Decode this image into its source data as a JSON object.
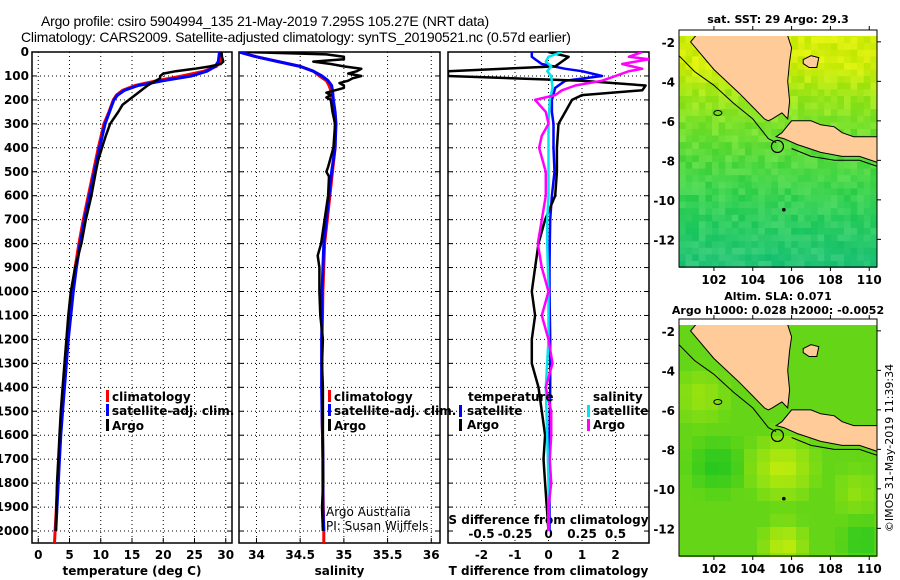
{
  "header": {
    "title_line1": "Argo profile: csiro 5904994_135 21-May-2019 7.295S 105.27E (NRT data)",
    "title_line2": "Climatology: CARS2009. Satellite-adjusted climatology: synTS_20190521.nc (0.57d earlier)"
  },
  "colors": {
    "climatology": "#ff0000",
    "satellite_adj": "#0000ff",
    "argo": "#000000",
    "sal_satellite": "#00e5ee",
    "sal_argo": "#ff00ff",
    "land": "#ffcc99"
  },
  "chart_data": [
    {
      "type": "line",
      "id": "temperature",
      "xlabel": "temperature (deg C)",
      "ylabel": "",
      "xlim": [
        -1,
        31
      ],
      "ylim": [
        2050,
        0
      ],
      "xticks": [
        0,
        5,
        10,
        15,
        20,
        25,
        30
      ],
      "yticks": [
        0,
        100,
        200,
        300,
        400,
        500,
        600,
        700,
        800,
        900,
        1000,
        1100,
        1200,
        1300,
        1400,
        1500,
        1600,
        1700,
        1800,
        1900,
        2000
      ],
      "grid": true,
      "legend_position": "center-right",
      "series": [
        {
          "name": "climatology",
          "color_key": "climatology",
          "depth": [
            0,
            40,
            60,
            80,
            100,
            120,
            140,
            160,
            180,
            200,
            250,
            300,
            400,
            500,
            600,
            700,
            800,
            900,
            1000,
            1100,
            1200,
            1300,
            1400,
            1500,
            1600,
            1700,
            1800,
            1900,
            2000,
            2050
          ],
          "values": [
            29.3,
            29.2,
            28.5,
            26.5,
            23,
            19,
            15.5,
            13.5,
            12.5,
            12,
            11.3,
            10.5,
            9.6,
            8.8,
            8,
            7.2,
            6.5,
            5.9,
            5.4,
            5.0,
            4.6,
            4.3,
            4.0,
            3.7,
            3.5,
            3.3,
            3.1,
            2.9,
            2.7,
            2.6
          ]
        },
        {
          "name": "satellite-adj. clim.",
          "color_key": "satellite_adj",
          "depth": [
            0,
            40,
            60,
            80,
            100,
            120,
            140,
            160,
            180,
            200,
            250,
            300,
            400,
            500,
            600,
            700,
            800,
            900,
            1000,
            1100,
            1200,
            1300,
            1400,
            1500,
            1600,
            1700,
            1800,
            1900,
            2000
          ],
          "values": [
            29.0,
            28.8,
            28.3,
            27.0,
            24.5,
            20,
            16,
            13.8,
            12.7,
            12.1,
            11.4,
            10.7,
            9.8,
            9.0,
            8.2,
            7.4,
            6.7,
            6.1,
            5.6,
            5.2,
            4.8,
            4.5,
            4.2,
            3.9,
            3.6,
            3.4,
            3.2,
            3.0,
            2.8
          ]
        },
        {
          "name": "Argo",
          "color_key": "argo",
          "depth": [
            0,
            20,
            40,
            50,
            60,
            70,
            80,
            90,
            100,
            110,
            120,
            140,
            160,
            180,
            200,
            220,
            250,
            280,
            300,
            350,
            400,
            450,
            500,
            600,
            700,
            800,
            900,
            1000,
            1100,
            1200,
            1300,
            1400,
            1500,
            1600,
            1700,
            1800,
            1900,
            2000
          ],
          "values": [
            29.3,
            29.4,
            29.6,
            29.2,
            27.5,
            25,
            22,
            20,
            19.5,
            19.5,
            18.8,
            17.5,
            16.5,
            15.5,
            14.5,
            13.5,
            12.8,
            12.0,
            11.5,
            10.8,
            10.2,
            9.6,
            9.2,
            8.5,
            7.6,
            6.9,
            5.9,
            5.2,
            4.8,
            4.5,
            4.2,
            3.9,
            3.6,
            3.4,
            3.2,
            3.0,
            2.9,
            2.8
          ]
        }
      ],
      "legend": [
        "climatology",
        "satellite-adj. clim.",
        "Argo"
      ]
    },
    {
      "type": "line",
      "id": "salinity",
      "xlabel": "salinity",
      "xlim": [
        33.8,
        36.1
      ],
      "ylim": [
        2050,
        0
      ],
      "xticks": [
        34,
        34.5,
        35,
        35.5,
        36
      ],
      "xtick_labels": [
        "34",
        "34.5",
        "35",
        "35.5",
        "36"
      ],
      "grid": true,
      "legend_position": "center-right",
      "series": [
        {
          "name": "climatology",
          "color_key": "climatology",
          "depth": [
            0,
            20,
            40,
            60,
            80,
            100,
            120,
            140,
            160,
            200,
            250,
            300,
            400,
            500,
            600,
            700,
            800,
            900,
            1000,
            1100,
            1200,
            1300,
            1400,
            1500,
            1600,
            1700,
            1800,
            1900,
            2000,
            2050
          ],
          "values": [
            33.8,
            34.0,
            34.25,
            34.5,
            34.65,
            34.72,
            34.8,
            34.83,
            34.85,
            34.86,
            34.88,
            34.9,
            34.9,
            34.87,
            34.84,
            34.81,
            34.78,
            34.77,
            34.76,
            34.755,
            34.75,
            34.75,
            34.75,
            34.75,
            34.755,
            34.76,
            34.76,
            34.765,
            34.77,
            34.77
          ]
        },
        {
          "name": "satellite-adj. clim.",
          "color_key": "satellite_adj",
          "depth": [
            0,
            20,
            40,
            60,
            80,
            100,
            120,
            140,
            160,
            200,
            250,
            300,
            400,
            500,
            600,
            700,
            800,
            900,
            1000,
            1100,
            1200,
            1300,
            1400,
            1500,
            1600,
            1700,
            1800,
            1900,
            2000
          ],
          "values": [
            33.8,
            34.0,
            34.25,
            34.5,
            34.65,
            34.75,
            34.82,
            34.86,
            34.87,
            34.88,
            34.9,
            34.91,
            34.9,
            34.86,
            34.83,
            34.8,
            34.77,
            34.76,
            34.75,
            34.75,
            34.745,
            34.745,
            34.745,
            34.75,
            34.755,
            34.76,
            34.76,
            34.76,
            34.77
          ]
        },
        {
          "name": "Argo",
          "color_key": "argo",
          "depth": [
            0,
            10,
            20,
            30,
            40,
            50,
            60,
            70,
            80,
            90,
            100,
            110,
            120,
            130,
            140,
            150,
            160,
            170,
            180,
            190,
            200,
            250,
            300,
            400,
            480,
            500,
            520,
            600,
            700,
            800,
            850,
            900,
            1000,
            1100,
            1200,
            1300,
            1400,
            1500,
            1600,
            1700,
            1800,
            1900,
            2000
          ],
          "values": [
            33.9,
            34.8,
            35.0,
            35.0,
            34.65,
            34.85,
            35.0,
            35.2,
            35.15,
            35.05,
            35.2,
            35.1,
            35.05,
            34.95,
            35.0,
            35.0,
            34.9,
            34.8,
            34.85,
            34.8,
            34.85,
            34.87,
            34.9,
            34.88,
            34.82,
            34.8,
            34.83,
            34.82,
            34.78,
            34.74,
            34.7,
            34.72,
            34.72,
            34.73,
            34.76,
            34.75,
            34.76,
            34.76,
            34.76,
            34.76,
            34.765,
            34.75,
            34.76
          ]
        }
      ],
      "legend": [
        "climatology",
        "satellite-adj. clim.",
        "Argo"
      ],
      "annotation": [
        "Argo Australia",
        "PI: Susan Wijffels"
      ]
    },
    {
      "type": "line",
      "id": "difference",
      "xlabel": "T difference from climatology",
      "xlim": [
        -3,
        3
      ],
      "ylim": [
        2050,
        0
      ],
      "xticks": [
        -2,
        -1,
        0,
        1,
        2
      ],
      "secondary_xlabel": "S difference from climatology",
      "secondary_xlim": [
        -0.75,
        0.75
      ],
      "secondary_xticks": [
        -0.5,
        -0.25,
        0,
        0.25,
        0.5
      ],
      "secondary_xtick_labels": [
        "-0.5",
        "-0.25",
        "0",
        "0.25",
        "0.5"
      ],
      "grid": true,
      "legend_position": "bottom",
      "series": [
        {
          "name": "temperature satellite",
          "group": "temperature",
          "axis": "T",
          "color_key": "satellite_adj",
          "depth": [
            0,
            20,
            30,
            50,
            70,
            80,
            100,
            120,
            150,
            200,
            250,
            300,
            400,
            500,
            600,
            700,
            800,
            900,
            1000,
            1200,
            1400,
            1600,
            1800,
            2000
          ],
          "values": [
            -0.5,
            -0.5,
            -0.4,
            -0.2,
            0.5,
            1.0,
            1.6,
            0.5,
            0.2,
            0.1,
            0.1,
            0.15,
            0.15,
            0.18,
            0.1,
            0.05,
            0.04,
            0.03,
            0.03,
            0.05,
            0.05,
            0.03,
            0.03,
            0.03
          ]
        },
        {
          "name": "temperature Argo",
          "group": "temperature",
          "axis": "T",
          "color_key": "argo",
          "depth": [
            0,
            20,
            40,
            60,
            80,
            100,
            120,
            140,
            160,
            180,
            200,
            250,
            300,
            400,
            500,
            600,
            700,
            800,
            900,
            1000,
            1100,
            1200,
            1300,
            1400,
            1500,
            1600,
            1700,
            1800,
            1900,
            2000
          ],
          "values": [
            0,
            0.6,
            0.4,
            0.2,
            -3,
            -3,
            1.0,
            2.9,
            2.8,
            1.0,
            0.7,
            0.5,
            0.3,
            0.25,
            0.25,
            0.2,
            -0.1,
            -0.3,
            -0.4,
            -0.5,
            -0.4,
            -0.5,
            -0.5,
            -0.3,
            -0.2,
            -0.1,
            -0.15,
            -0.1,
            -0.05,
            0
          ]
        },
        {
          "name": "salinity satellite",
          "group": "salinity",
          "axis": "S",
          "color_key": "sal_satellite",
          "depth": [
            0,
            20,
            40,
            60,
            80,
            100,
            150,
            200,
            300,
            400,
            500,
            600,
            700,
            800,
            1000,
            1200,
            1400,
            1600,
            1800,
            2000
          ],
          "values": [
            0.1,
            0.0,
            -0.02,
            0.02,
            -0.01,
            0.02,
            0.03,
            0.01,
            0.0,
            0.0,
            0.0,
            0.0,
            -0.01,
            -0.01,
            0.0,
            0.0,
            -0.02,
            -0.01,
            0.0,
            0.0
          ]
        },
        {
          "name": "salinity Argo",
          "group": "salinity",
          "axis": "S",
          "color_key": "sal_argo",
          "depth": [
            0,
            20,
            30,
            50,
            70,
            80,
            100,
            120,
            140,
            160,
            180,
            200,
            250,
            300,
            350,
            400,
            500,
            600,
            700,
            800,
            900,
            1000,
            1100,
            1200,
            1300,
            1400,
            1500,
            1600,
            1700,
            1800,
            1900,
            2000
          ],
          "values": [
            0.7,
            0.6,
            0.75,
            0.55,
            0.7,
            0.6,
            0.5,
            0.4,
            0.2,
            0.1,
            0.05,
            -0.1,
            -0.02,
            0.0,
            -0.05,
            -0.07,
            -0.02,
            -0.02,
            -0.05,
            -0.08,
            -0.05,
            0.0,
            -0.05,
            0.0,
            0.03,
            -0.02,
            0.02,
            0.02,
            0.01,
            0.02,
            0.0,
            0.0
          ]
        }
      ],
      "legend_groups": [
        {
          "title": "temperature",
          "items": [
            "satellite",
            "Argo"
          ]
        },
        {
          "title": "salinity",
          "items": [
            "satellite",
            "Argo"
          ]
        }
      ]
    },
    {
      "type": "heatmap",
      "id": "sst_map",
      "title": "sat. SST: 29 Argo: 29.3",
      "xlim": [
        100.2,
        110.4
      ],
      "ylim": [
        -13.4,
        -1.4
      ],
      "xticks": [
        102,
        104,
        106,
        108,
        110
      ],
      "yticks": [
        -2,
        -4,
        -6,
        -8,
        -10,
        -12
      ],
      "argo_position": {
        "lon": 105.27,
        "lat": -7.295
      }
    },
    {
      "type": "heatmap",
      "id": "sla_map",
      "title_line1": "Altim. SLA: 0.071",
      "title_line2": "Argo h1000: 0.028 h2000: -0.0052",
      "xlim": [
        100.2,
        110.4
      ],
      "ylim": [
        -13.4,
        -1.4
      ],
      "xticks": [
        102,
        104,
        106,
        108,
        110
      ],
      "yticks": [
        -2,
        -4,
        -6,
        -8,
        -10,
        -12
      ],
      "argo_position": {
        "lon": 105.27,
        "lat": -7.295
      }
    }
  ],
  "footer": {
    "stamp": "©IMOS 31-May-2019 11:39:34"
  }
}
